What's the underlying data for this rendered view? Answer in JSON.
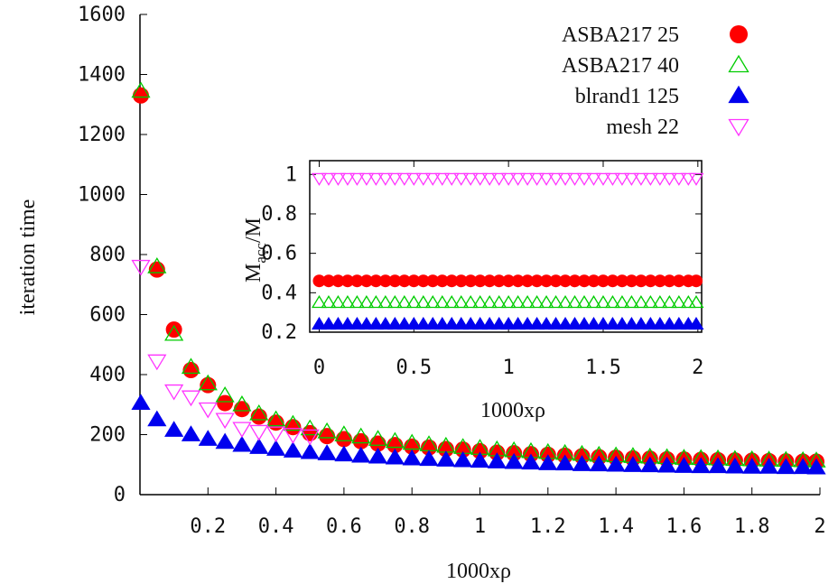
{
  "chart_data": [
    {
      "type": "scatter",
      "xlabel": "1000xρ",
      "ylabel": "iteration time",
      "xlim": [
        0,
        2
      ],
      "ylim": [
        0,
        1600
      ],
      "xticks": [
        "0.2",
        "0.4",
        "0.6",
        "0.8",
        "1",
        "1.2",
        "1.4",
        "1.6",
        "1.8",
        "2"
      ],
      "yticks": [
        "0",
        "200",
        "400",
        "600",
        "800",
        "1000",
        "1200",
        "1400",
        "1600"
      ],
      "legend_position": "top-right",
      "series": [
        {
          "name": "ASBA217 25",
          "color": "#ff0000",
          "marker": "filled-circle",
          "x": [
            0.0,
            0.05,
            0.1,
            0.15,
            0.2,
            0.25,
            0.3,
            0.35,
            0.4,
            0.45,
            0.5,
            0.55,
            0.6,
            0.65,
            0.7,
            0.75,
            0.8,
            0.85,
            0.9,
            0.95,
            1.0,
            1.05,
            1.1,
            1.15,
            1.2,
            1.25,
            1.3,
            1.35,
            1.4,
            1.45,
            1.5,
            1.55,
            1.6,
            1.65,
            1.7,
            1.75,
            1.8,
            1.85,
            1.9,
            1.95,
            2.0
          ],
          "y": [
            1330,
            750,
            550,
            415,
            365,
            305,
            285,
            260,
            240,
            225,
            205,
            195,
            185,
            178,
            170,
            165,
            160,
            157,
            152,
            150,
            145,
            140,
            138,
            135,
            133,
            130,
            128,
            125,
            123,
            121,
            120,
            118,
            117,
            116,
            115,
            114,
            113,
            112,
            111,
            110,
            110
          ]
        },
        {
          "name": "ASBA217 40",
          "color": "#00cc00",
          "marker": "open-triangle-up",
          "x": [
            0.0,
            0.05,
            0.1,
            0.15,
            0.2,
            0.25,
            0.3,
            0.35,
            0.4,
            0.45,
            0.5,
            0.55,
            0.6,
            0.65,
            0.7,
            0.75,
            0.8,
            0.85,
            0.9,
            0.95,
            1.0,
            1.05,
            1.1,
            1.15,
            1.2,
            1.25,
            1.3,
            1.35,
            1.4,
            1.45,
            1.5,
            1.55,
            1.6,
            1.65,
            1.7,
            1.75,
            1.8,
            1.85,
            1.9,
            1.95,
            2.0
          ],
          "y": [
            1345,
            760,
            535,
            425,
            370,
            330,
            300,
            270,
            250,
            235,
            220,
            210,
            200,
            193,
            185,
            178,
            172,
            167,
            162,
            158,
            155,
            150,
            147,
            144,
            141,
            138,
            135,
            132,
            130,
            128,
            126,
            124,
            122,
            121,
            120,
            118,
            117,
            116,
            115,
            114,
            113
          ]
        },
        {
          "name": "blrand1 125",
          "color": "#0000ee",
          "marker": "filled-triangle-up",
          "x": [
            0.0,
            0.05,
            0.1,
            0.15,
            0.2,
            0.25,
            0.3,
            0.35,
            0.4,
            0.45,
            0.5,
            0.55,
            0.6,
            0.65,
            0.7,
            0.75,
            0.8,
            0.85,
            0.9,
            0.95,
            1.0,
            1.05,
            1.1,
            1.15,
            1.2,
            1.25,
            1.3,
            1.35,
            1.4,
            1.45,
            1.5,
            1.55,
            1.6,
            1.65,
            1.7,
            1.75,
            1.8,
            1.85,
            1.9,
            1.95,
            2.0
          ],
          "y": [
            305,
            250,
            215,
            200,
            185,
            175,
            165,
            158,
            152,
            146,
            141,
            137,
            133,
            129,
            126,
            123,
            120,
            118,
            116,
            114,
            112,
            110,
            108,
            106,
            104,
            103,
            101,
            100,
            99,
            98,
            97,
            96,
            95,
            94,
            94,
            93,
            92,
            92,
            91,
            91,
            90
          ]
        },
        {
          "name": "mesh 22",
          "color": "#ff33ff",
          "marker": "open-triangle-down",
          "x": [
            0.0,
            0.05,
            0.1,
            0.15,
            0.2,
            0.25,
            0.3,
            0.35,
            0.4,
            0.45,
            0.5
          ],
          "y": [
            760,
            445,
            345,
            325,
            285,
            250,
            220,
            210,
            205,
            200,
            195
          ]
        }
      ]
    },
    {
      "type": "scatter",
      "xlabel": "1000xρ",
      "ylabel_main": "M",
      "ylabel_sub": "acc",
      "ylabel_tail": "/M",
      "xlim": [
        -0.05,
        2.02
      ],
      "ylim": [
        0.2,
        1.07
      ],
      "xticks": [
        "0",
        "0.5",
        "1",
        "1.5",
        "2"
      ],
      "yticks": [
        "0.2",
        "0.4",
        "0.6",
        "0.8",
        "1"
      ],
      "series": [
        {
          "name": "ASBA217 25",
          "color": "#ff0000",
          "marker": "filled-circle",
          "level": 0.46
        },
        {
          "name": "ASBA217 40",
          "color": "#00cc00",
          "marker": "open-triangle-up",
          "level": 0.35
        },
        {
          "name": "blrand1 125",
          "color": "#0000ee",
          "marker": "filled-triangle-up",
          "level": 0.24
        },
        {
          "name": "mesh 22",
          "color": "#ff33ff",
          "marker": "open-triangle-down",
          "level": 0.98
        }
      ]
    }
  ]
}
